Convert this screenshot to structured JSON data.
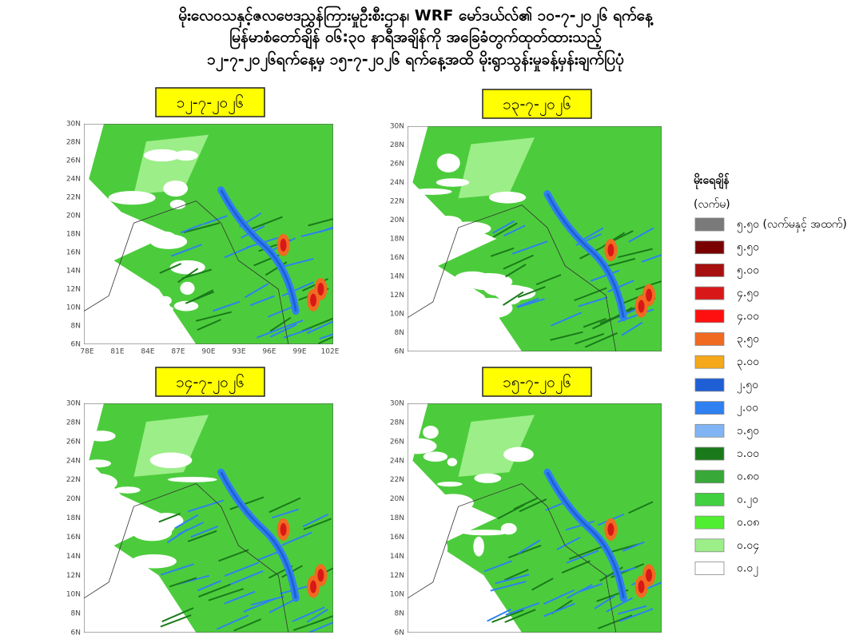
{
  "title_lines": [
    "မိုးလေဝသနှင့်ဇလဗေဒညွှန်ကြားမှုဦးစီးဌာန၊ WRF မော်ဒယ်လ်၏ ၁၀-၇-၂၀၂၆ ရက်နေ့",
    "မြန်မာစံတော်ချိန် ၀၆:၃၀ နာရီအချိန်ကို အခြေခံတွက်ထုတ်ထားသည့်",
    "၁၂-၇-၂၀၂၆ရက်နေ့မှ ၁၅-၇-၂၀၂၆ ရက်နေ့အထိ မိုးရွာသွန်းမှုခန့်မှန်းချက်ပြပုံ"
  ],
  "panels": [
    {
      "date": "၁၂-၇-၂၀၂၆"
    },
    {
      "date": "၁၃-၇-၂၀၂၆"
    },
    {
      "date": "၁၄-၇-၂၀၂၆"
    },
    {
      "date": "၁၅-၇-၂၀၂၆"
    }
  ],
  "latitude_labels": [
    "30N",
    "28N",
    "26N",
    "24N",
    "22N",
    "20N",
    "18N",
    "16N",
    "14N",
    "12N",
    "10N",
    "8N",
    "6N"
  ],
  "longitude_labels": [
    "78E",
    "81E",
    "84E",
    "87E",
    "90E",
    "93E",
    "96E",
    "99E",
    "102E"
  ],
  "legend": {
    "title": "မိုးရေချိန်",
    "unit": "(လက်မ)",
    "items": [
      {
        "label": "၅.၅၀ (လက်မနှင့် အထက်)",
        "color": "#7a7a7a"
      },
      {
        "label": "၅.၅၀",
        "color": "#7a0000"
      },
      {
        "label": "၅.၀၀",
        "color": "#a81010"
      },
      {
        "label": "၄.၅၀",
        "color": "#d81818"
      },
      {
        "label": "၄.၀၀",
        "color": "#ff1010"
      },
      {
        "label": "၃.၅၀",
        "color": "#f06a20"
      },
      {
        "label": "၃.၀၀",
        "color": "#f5a81a"
      },
      {
        "label": "၂.၅၀",
        "color": "#1f5fd6"
      },
      {
        "label": "၂.၀၀",
        "color": "#2f80f0"
      },
      {
        "label": "၁.၅၀",
        "color": "#80b4f4"
      },
      {
        "label": "၁.၀၀",
        "color": "#1a7a1a"
      },
      {
        "label": "၀.၈၀",
        "color": "#38a838"
      },
      {
        "label": "၀.၂၀",
        "color": "#40d040"
      },
      {
        "label": "၀.၀၈",
        "color": "#50ee30"
      },
      {
        "label": "၀.၀၄",
        "color": "#9cee88"
      },
      {
        "label": "၀.၀၂",
        "color": "#ffffff"
      }
    ]
  }
}
